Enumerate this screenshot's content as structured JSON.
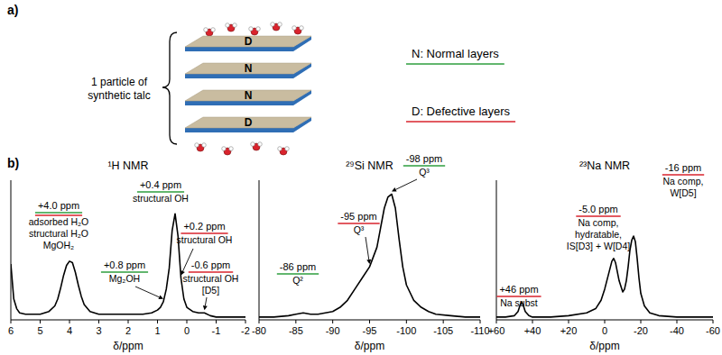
{
  "panel_a": {
    "label": "a)",
    "caption": [
      "1 particle of",
      "synthetic talc"
    ],
    "layers": [
      "D",
      "N",
      "N",
      "D"
    ],
    "legend": [
      {
        "text": "N: Normal layers",
        "color": "#2e9e3e"
      },
      {
        "text": "D: Defective layers",
        "color": "#d9232d"
      }
    ]
  },
  "panel_b": {
    "label": "b)"
  },
  "chart_data": [
    {
      "type": "line",
      "title": "¹H NMR",
      "x_label": "δ/ppm",
      "color": "#000000",
      "tick_labels": "x",
      "xlim": [
        6,
        -2
      ],
      "xticks": [
        6,
        5,
        4,
        3,
        2,
        1,
        0,
        -1,
        -2
      ],
      "ylim": [
        0,
        100
      ],
      "x": [
        6,
        5.9,
        5.8,
        5.7,
        5.5,
        5.0,
        4.7,
        4.5,
        4.4,
        4.3,
        4.2,
        4.1,
        4.0,
        3.9,
        3.8,
        3.7,
        3.6,
        3.5,
        3.3,
        3.0,
        2.5,
        2.0,
        1.5,
        1.2,
        1.0,
        0.9,
        0.8,
        0.7,
        0.6,
        0.5,
        0.4,
        0.3,
        0.2,
        0.1,
        0.0,
        -0.2,
        -0.4,
        -0.6,
        -0.8,
        -1.0,
        -1.5,
        -2.0
      ],
      "values": [
        40,
        15,
        8,
        5,
        4,
        4,
        6,
        10,
        15,
        23,
        32,
        39,
        42,
        41,
        34,
        25,
        17,
        11,
        6,
        4,
        4,
        4,
        4,
        5,
        7,
        9,
        13,
        22,
        37,
        64,
        76,
        60,
        30,
        15,
        9,
        6,
        5,
        5,
        3,
        2,
        2,
        2
      ],
      "annotations": [
        {
          "label": "+4.0 ppm",
          "value": 4.0,
          "text": [
            "adsorbed H₂O",
            "structural H₂O",
            "MgOH₂"
          ],
          "colors": [
            "#2e9e3e",
            "#d9232d"
          ]
        },
        {
          "label": "+0.4 ppm",
          "value": 0.4,
          "text": [
            "structural OH"
          ],
          "colors": [
            "#2e9e3e"
          ]
        },
        {
          "label": "+0.8 ppm",
          "value": 0.8,
          "text": [
            "Mg₂OH"
          ],
          "colors": [
            "#2e9e3e"
          ]
        },
        {
          "label": "+0.2 ppm",
          "value": 0.2,
          "text": [
            "structural OH"
          ],
          "colors": [
            "#d9232d"
          ]
        },
        {
          "label": "-0.6 ppm",
          "value": -0.6,
          "text": [
            "structural OH",
            "[D5]"
          ],
          "colors": [
            "#d9232d"
          ]
        }
      ]
    },
    {
      "type": "line",
      "title": "²⁹Si NMR",
      "x_label": "δ/ppm",
      "color": "#000000",
      "tick_labels": "x",
      "xlim": [
        -80,
        -110
      ],
      "xticks": [
        -80,
        -85,
        -90,
        -95,
        -100,
        -105,
        -110
      ],
      "ylim": [
        0,
        100
      ],
      "x": [
        -80,
        -82,
        -84,
        -85,
        -86,
        -87,
        -88,
        -90,
        -91,
        -92,
        -93,
        -94,
        -95,
        -96,
        -96.5,
        -97,
        -97.5,
        -98,
        -98.5,
        -99,
        -99.5,
        -100,
        -101,
        -102,
        -103,
        -104,
        -106,
        -108,
        -110
      ],
      "values": [
        2,
        2,
        3,
        4,
        5,
        4,
        4,
        6,
        9,
        14,
        22,
        30,
        38,
        52,
        66,
        80,
        88,
        90,
        80,
        58,
        38,
        25,
        14,
        9,
        6,
        4,
        3,
        2,
        2
      ],
      "annotations": [
        {
          "label": "-98 ppm",
          "value": -98,
          "text": [
            "Q³"
          ],
          "colors": [
            "#2e9e3e"
          ]
        },
        {
          "label": "-95 ppm",
          "value": -95,
          "text": [
            "Q³"
          ],
          "colors": [
            "#d9232d"
          ]
        },
        {
          "label": "-86 ppm",
          "value": -86,
          "text": [
            "Q²"
          ],
          "colors": [
            "#2e9e3e"
          ]
        }
      ]
    },
    {
      "type": "line",
      "title": "²³Na NMR",
      "x_label": "δ/ppm",
      "color": "#000000",
      "tick_labels": "x",
      "xlim": [
        60,
        -60
      ],
      "xticks": [
        {
          "value": 60,
          "label": "+60"
        },
        {
          "value": 40,
          "label": "+40"
        },
        {
          "value": 20,
          "label": "+20"
        },
        0,
        -20,
        -40,
        -60
      ],
      "ylim": [
        0,
        100
      ],
      "x": [
        60,
        55,
        50,
        48,
        47,
        46,
        45,
        44,
        42,
        40,
        30,
        20,
        10,
        5,
        2,
        0,
        -2,
        -4,
        -5,
        -6,
        -8,
        -10,
        -11,
        -12,
        -13,
        -14,
        -15,
        -16,
        -17,
        -18,
        -19,
        -20,
        -22,
        -25,
        -30,
        -40,
        -50,
        -60
      ],
      "values": [
        2,
        2,
        3,
        6,
        10,
        13,
        10,
        6,
        3,
        2,
        2,
        3,
        5,
        8,
        14,
        22,
        32,
        42,
        44,
        41,
        28,
        20,
        22,
        28,
        38,
        50,
        57,
        60,
        56,
        44,
        30,
        19,
        10,
        5,
        3,
        2,
        2,
        2
      ],
      "annotations": [
        {
          "label": "+46 ppm",
          "value": 46,
          "text": [
            "Na subst"
          ],
          "colors": [
            "#d9232d"
          ]
        },
        {
          "label": "-5.0 ppm",
          "value": -5.0,
          "text": [
            "Na comp,",
            "hydratable,",
            "IS[D3] + W[D4]"
          ],
          "colors": [
            "#d9232d"
          ]
        },
        {
          "label": "-16 ppm",
          "value": -16,
          "text": [
            "Na comp,",
            "W[D5]"
          ],
          "colors": [
            "#d9232d"
          ]
        }
      ]
    }
  ]
}
